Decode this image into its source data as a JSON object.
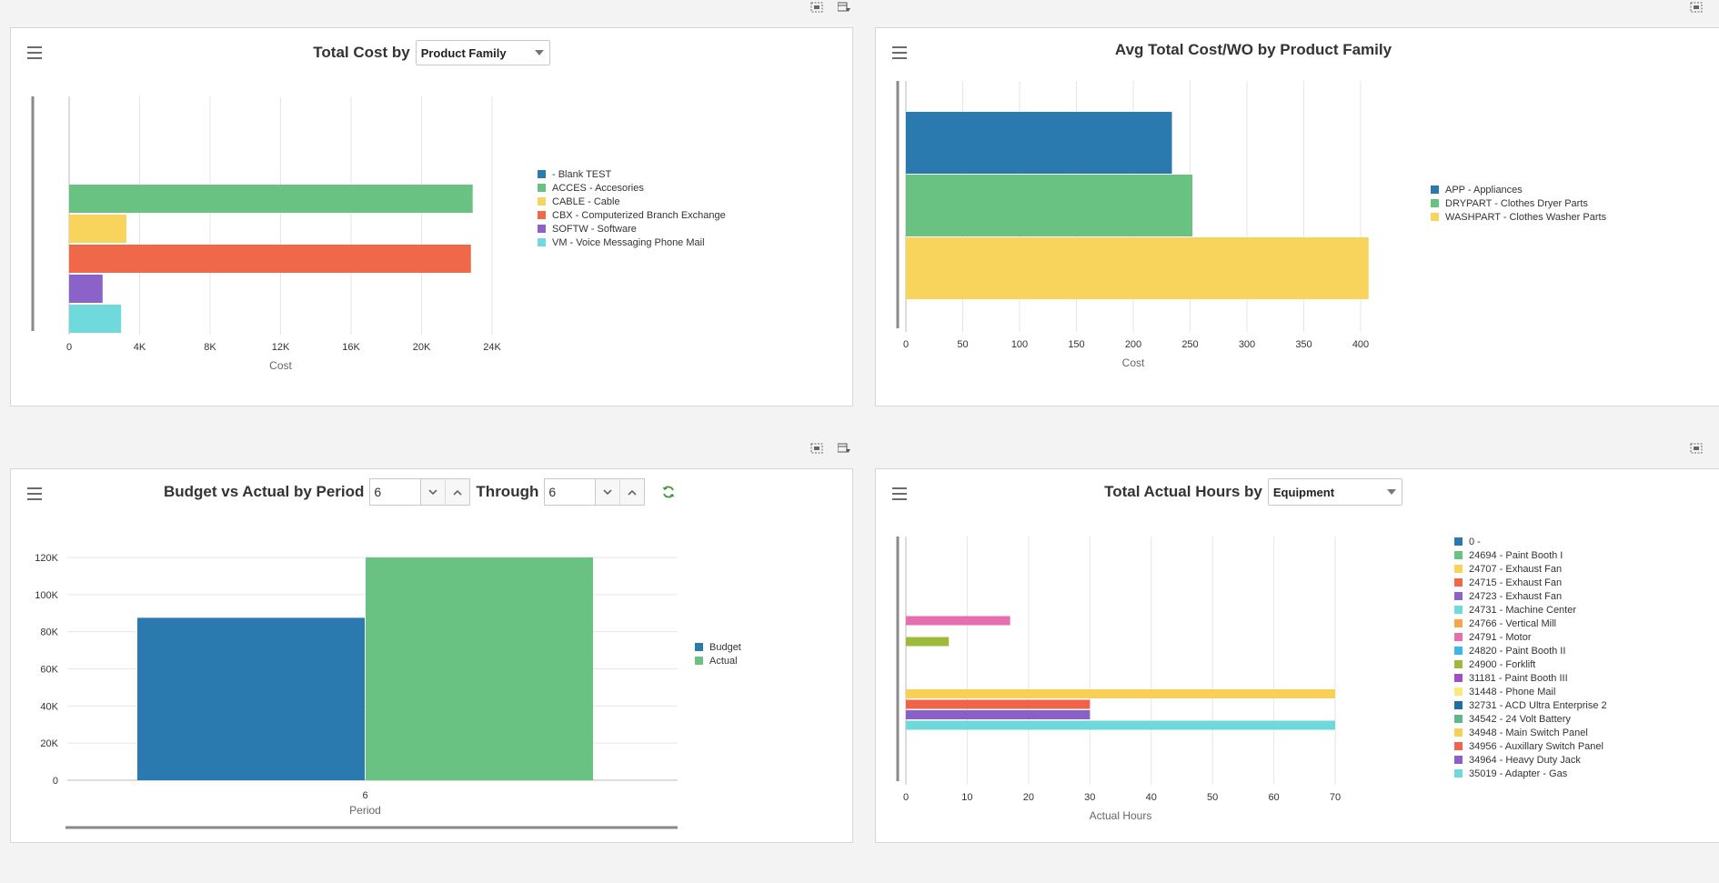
{
  "panels": {
    "total_cost": {
      "title": "Total Cost by",
      "dropdown_value": "Product Family",
      "chart_data": {
        "type": "bar",
        "orientation": "horizontal",
        "categories": [
          "- Blank TEST",
          "ACCES - Accesories",
          "CABLE - Cable",
          "CBX - Computerized Branch Exchange",
          "SOFTW - Software",
          "VM - Voice Messaging Phone Mail"
        ],
        "values": [
          0,
          22900,
          3250,
          22800,
          1900,
          2950
        ],
        "colors": [
          "#2a7ab0",
          "#69c282",
          "#f9d45c",
          "#ee6849",
          "#8a62c8",
          "#6fd9db"
        ],
        "x_ticks": [
          "0",
          "4K",
          "8K",
          "12K",
          "16K",
          "20K",
          "24K"
        ],
        "xlim": [
          0,
          24000
        ],
        "xlabel": "Cost",
        "grid": true,
        "legend_position": "right"
      }
    },
    "avg_cost": {
      "title": "Avg Total Cost/WO by Product Family",
      "chart_data": {
        "type": "bar",
        "orientation": "horizontal",
        "categories": [
          "APP - Appliances",
          "DRYPART - Clothes Dryer Parts",
          "WASHPART - Clothes Washer Parts"
        ],
        "values": [
          234,
          252,
          407
        ],
        "colors": [
          "#2a7ab0",
          "#69c282",
          "#f9d45c"
        ],
        "x_ticks": [
          "0",
          "50",
          "100",
          "150",
          "200",
          "250",
          "300",
          "350",
          "400"
        ],
        "xlim": [
          0,
          400
        ],
        "xlabel": "Cost",
        "grid": true,
        "legend_position": "right"
      }
    },
    "budget": {
      "title": "Budget vs Actual by Period",
      "from_value": "6",
      "through_label": "Through",
      "through_value": "6",
      "chart_data": {
        "type": "bar",
        "categories": [
          "6"
        ],
        "series": [
          {
            "name": "Budget",
            "values": [
              87500
            ],
            "color": "#2a7ab0"
          },
          {
            "name": "Actual",
            "values": [
              120000
            ],
            "color": "#69c282"
          }
        ],
        "y_ticks": [
          "0",
          "20K",
          "40K",
          "60K",
          "80K",
          "100K",
          "120K"
        ],
        "ylim": [
          0,
          120000
        ],
        "xlabel": "Period",
        "grid": true,
        "legend_position": "right"
      }
    },
    "hours": {
      "title": "Total Actual Hours by",
      "dropdown_value": "Equipment",
      "chart_data": {
        "type": "bar",
        "orientation": "horizontal",
        "categories": [
          "0 -",
          "24694 - Paint Booth I",
          "24707 - Exhaust Fan",
          "24715 - Exhaust Fan",
          "24723 - Exhaust Fan",
          "24731 - Machine Center",
          "24766 - Vertical Mill",
          "24791 - Motor",
          "24820 - Paint Booth II",
          "24900 - Forklift",
          "31181 - Paint Booth III",
          "31448 - Phone Mail",
          "32731 - ACD Ultra Enterprise 2",
          "34542 - 24 Volt Battery",
          "34948 - Main Switch Panel",
          "34956 - Auxillary Switch Panel",
          "34964 - Heavy Duty Jack",
          "35019 - Adapter - Gas"
        ],
        "values": [
          0,
          0,
          0,
          0,
          0,
          0,
          0,
          17,
          0,
          7,
          0,
          0,
          0,
          0,
          70,
          30,
          30,
          70
        ],
        "colors": [
          "#2a7ab0",
          "#69c282",
          "#f9d45c",
          "#ee6849",
          "#8a62c8",
          "#6fd9db",
          "#f6a64a",
          "#e66fb0",
          "#3bb7e8",
          "#9dba3a",
          "#a24fc2",
          "#f9ea7a",
          "#1f6f9e",
          "#5fb786",
          "#f7d157",
          "#ef6448",
          "#8860c8",
          "#6ed8da"
        ],
        "x_ticks": [
          "0",
          "10",
          "20",
          "30",
          "40",
          "50",
          "60",
          "70"
        ],
        "xlim": [
          0,
          70
        ],
        "xlabel": "Actual Hours",
        "grid": true,
        "legend_position": "right"
      }
    }
  }
}
